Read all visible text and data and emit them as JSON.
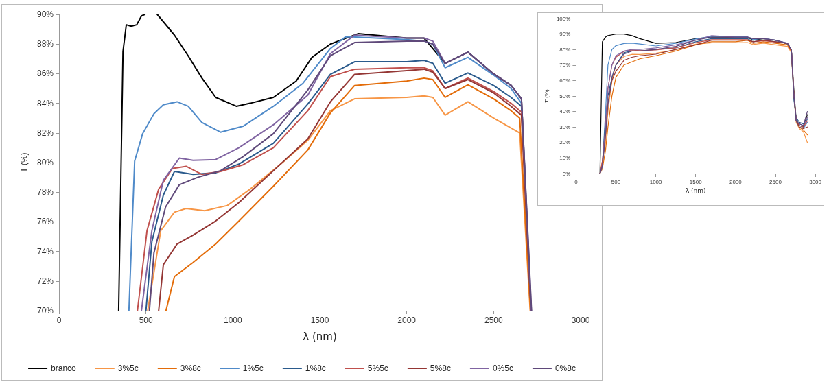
{
  "chart_data": [
    {
      "type": "line",
      "xlabel": "λ (nm)",
      "ylabel": "T (%)",
      "xlim": [
        0,
        3000
      ],
      "xticks": [
        0,
        500,
        1000,
        1500,
        2000,
        2500,
        3000
      ],
      "ylim": [
        70,
        90
      ],
      "yticks": [
        {
          "value": 70,
          "label": "70%"
        },
        {
          "value": 72,
          "label": "72%"
        },
        {
          "value": 74,
          "label": "74%"
        },
        {
          "value": 76,
          "label": "76%"
        },
        {
          "value": 78,
          "label": "78%"
        },
        {
          "value": 80,
          "label": "80%"
        },
        {
          "value": 82,
          "label": "82%"
        },
        {
          "value": 84,
          "label": "84%"
        },
        {
          "value": 86,
          "label": "86%"
        },
        {
          "value": 88,
          "label": "88%"
        },
        {
          "value": 90,
          "label": "90%"
        }
      ],
      "legend": "bottom",
      "marker": "none",
      "line_style": "solid",
      "series": [
        {
          "name": "branco",
          "color": "#000000",
          "x": [
            343,
            368,
            387,
            415,
            447,
            474,
            494,
            530,
            565,
            664,
            743,
            822,
            901,
            1020,
            1099,
            1233,
            1364,
            1455,
            1561,
            1720,
            2000,
            2100,
            2221,
            2352,
            2498,
            2601,
            2660,
            2715
          ],
          "values": [
            70,
            87.5,
            89.3,
            89.2,
            89.3,
            89.9,
            90,
            null,
            90,
            88.6,
            87.2,
            85.7,
            84.4,
            83.8,
            84.0,
            84.4,
            85.5,
            87.1,
            88.0,
            88.7,
            88.4,
            88.4,
            86.7,
            87.45,
            86.0,
            85.2,
            84.3,
            70
          ]
        },
        {
          "name": "3%5c",
          "color": "#f79646",
          "x": [
            510,
            585,
            664,
            731,
            838,
            968,
            1099,
            1296,
            1431,
            1561,
            1700,
            2000,
            2100,
            2150,
            2221,
            2352,
            2500,
            2650,
            2710
          ],
          "values": [
            70,
            75.4,
            76.65,
            76.9,
            76.75,
            77.1,
            78.2,
            80.1,
            81.5,
            83.5,
            84.3,
            84.4,
            84.5,
            84.4,
            83.2,
            84.1,
            83.0,
            82.0,
            70
          ]
        },
        {
          "name": "3%8c",
          "color": "#e36c09",
          "x": [
            615,
            664,
            771,
            901,
            1035,
            1233,
            1431,
            1561,
            1700,
            2000,
            2100,
            2150,
            2221,
            2352,
            2500,
            2600,
            2650,
            2712
          ],
          "values": [
            70,
            72.3,
            73.25,
            74.5,
            76.05,
            78.4,
            80.85,
            83.35,
            85.2,
            85.5,
            85.7,
            85.6,
            84.4,
            85.25,
            84.3,
            83.5,
            83,
            70
          ]
        },
        {
          "name": "1%5c",
          "color": "#4f8ac9",
          "x": [
            402,
            435,
            481,
            546,
            600,
            679,
            743,
            822,
            929,
            1059,
            1233,
            1403,
            1561,
            1650,
            2000,
            2100,
            2150,
            2221,
            2352,
            2500,
            2600,
            2660,
            2715
          ],
          "values": [
            70,
            80.1,
            81.95,
            83.3,
            83.9,
            84.1,
            83.8,
            82.7,
            82.05,
            82.45,
            83.8,
            85.35,
            87.7,
            88.5,
            88.3,
            88.2,
            88,
            86.4,
            87.1,
            85.9,
            85,
            84,
            70
          ]
        },
        {
          "name": "1%8c",
          "color": "#2a5a8c",
          "x": [
            500,
            534,
            600,
            664,
            771,
            901,
            1035,
            1233,
            1431,
            1561,
            1700,
            2000,
            2100,
            2150,
            2221,
            2352,
            2500,
            2600,
            2660,
            2715
          ],
          "values": [
            70,
            74.65,
            77.8,
            79.4,
            79.2,
            79.3,
            79.9,
            81.3,
            83.95,
            85.95,
            86.8,
            86.8,
            86.9,
            86.7,
            85.35,
            86.05,
            85.2,
            84.4,
            83.8,
            70
          ]
        },
        {
          "name": "5%5c",
          "color": "#c0504d",
          "x": [
            451,
            506,
            573,
            652,
            731,
            822,
            929,
            1059,
            1233,
            1431,
            1561,
            1700,
            2000,
            2100,
            2150,
            2221,
            2352,
            2500,
            2600,
            2660,
            2715
          ],
          "values": [
            70,
            75.4,
            78.2,
            79.6,
            79.75,
            79.2,
            79.4,
            79.85,
            81.0,
            83.5,
            85.8,
            86.3,
            86.4,
            86.4,
            86.2,
            85.0,
            85.7,
            84.8,
            84.0,
            83.4,
            70
          ]
        },
        {
          "name": "5%8c",
          "color": "#943634",
          "x": [
            573,
            600,
            679,
            771,
            901,
            1035,
            1233,
            1431,
            1561,
            1700,
            2000,
            2100,
            2150,
            2221,
            2352,
            2500,
            2600,
            2660,
            2715
          ],
          "values": [
            70,
            73.1,
            74.5,
            75.1,
            76.05,
            77.3,
            79.45,
            81.6,
            84.1,
            85.95,
            86.2,
            86.3,
            86.1,
            85.0,
            85.6,
            84.7,
            83.8,
            83.2,
            70
          ]
        },
        {
          "name": "0%5c",
          "color": "#8064a2",
          "x": [
            474,
            534,
            600,
            692,
            771,
            901,
            1035,
            1233,
            1431,
            1561,
            1700,
            2000,
            2100,
            2150,
            2221,
            2352,
            2498,
            2601,
            2660,
            2717
          ],
          "values": [
            70,
            75.4,
            78.8,
            80.3,
            80.15,
            80.2,
            81.0,
            82.55,
            84.55,
            87.35,
            88.6,
            88.4,
            88.4,
            88.2,
            86.7,
            87.45,
            86.0,
            85.2,
            84.3,
            70
          ]
        },
        {
          "name": "0%8c",
          "color": "#5f497a",
          "x": [
            520,
            546,
            613,
            692,
            797,
            929,
            1059,
            1233,
            1431,
            1561,
            1700,
            2000,
            2100,
            2150,
            2221,
            2352,
            2498,
            2601,
            2660,
            2718
          ],
          "values": [
            70,
            73.9,
            77.0,
            78.5,
            79.0,
            79.45,
            80.4,
            81.95,
            84.9,
            87.2,
            88.1,
            88.2,
            88.2,
            88.0,
            86.7,
            87.45,
            86.0,
            85.2,
            84.3,
            70
          ]
        }
      ]
    },
    {
      "type": "line",
      "xlabel": "λ (nm)",
      "ylabel": "T (%)",
      "xlim": [
        0,
        3000
      ],
      "xticks": [
        0,
        500,
        1000,
        1500,
        2000,
        2500,
        3000
      ],
      "ylim": [
        0,
        100
      ],
      "yticks": [
        {
          "value": 0,
          "label": "0%"
        },
        {
          "value": 10,
          "label": "10%"
        },
        {
          "value": 20,
          "label": "20%"
        },
        {
          "value": 30,
          "label": "30%"
        },
        {
          "value": 40,
          "label": "40%"
        },
        {
          "value": 50,
          "label": "50%"
        },
        {
          "value": 60,
          "label": "60%"
        },
        {
          "value": 70,
          "label": "70%"
        },
        {
          "value": 80,
          "label": "80%"
        },
        {
          "value": 90,
          "label": "90%"
        },
        {
          "value": 100,
          "label": "100%"
        }
      ],
      "marker": "none",
      "line_style": "solid",
      "x": [
        300,
        330,
        370,
        400,
        450,
        500,
        600,
        700,
        800,
        1000,
        1250,
        1500,
        1700,
        2000,
        2150,
        2220,
        2350,
        2500,
        2650,
        2700,
        2730,
        2760,
        2800,
        2850,
        2900
      ],
      "series": [
        {
          "color": "#000000",
          "values": [
            0,
            85,
            88,
            89,
            89.5,
            90,
            90,
            89,
            87,
            84,
            84.5,
            87,
            88,
            88,
            88,
            86,
            87,
            86,
            83.5,
            80,
            55,
            35,
            31,
            30,
            38
          ]
        },
        {
          "color": "#f79646",
          "values": [
            0,
            8,
            20,
            40,
            60,
            70,
            75.5,
            76.9,
            76.8,
            77.6,
            79.8,
            83.5,
            84.3,
            84.4,
            84.5,
            83.2,
            84.1,
            83,
            82,
            78,
            50,
            33,
            29,
            27,
            20
          ]
        },
        {
          "color": "#e36c09",
          "values": [
            0,
            3,
            15,
            30,
            50,
            62,
            70,
            72,
            74,
            76,
            79,
            83,
            85,
            85,
            86,
            84,
            85,
            84,
            83,
            79,
            52,
            34,
            30,
            28,
            25
          ]
        },
        {
          "color": "#4f8ac9",
          "values": [
            0,
            5,
            40,
            70,
            80,
            82.5,
            83.9,
            84.1,
            83.6,
            82.3,
            84,
            86.8,
            88.5,
            88.3,
            88.2,
            86.4,
            87.1,
            86,
            84,
            80,
            50,
            34,
            30,
            29,
            33
          ]
        },
        {
          "color": "#2a5a8c",
          "values": [
            0,
            6,
            35,
            50,
            62,
            70,
            78,
            79,
            79,
            80,
            81,
            85,
            87,
            87,
            87,
            85,
            86,
            85,
            84,
            80,
            48,
            36,
            33,
            32,
            35
          ]
        },
        {
          "color": "#c0504d",
          "values": [
            0,
            8,
            30,
            55,
            70,
            75,
            78.8,
            79.7,
            79.3,
            79.7,
            81.1,
            84.4,
            86.3,
            86.4,
            86.4,
            85,
            85.7,
            84.8,
            84,
            80,
            52,
            34,
            31,
            30,
            34
          ]
        },
        {
          "color": "#943634",
          "values": [
            0,
            5,
            25,
            45,
            60,
            66,
            73,
            75,
            76,
            77,
            80,
            83,
            86,
            86,
            86,
            85,
            86,
            85,
            84,
            79,
            52,
            34,
            30,
            29,
            30
          ]
        },
        {
          "color": "#8064a2",
          "values": [
            0,
            5,
            30,
            55,
            70,
            76,
            79,
            80,
            80,
            81,
            83,
            86,
            89,
            88,
            88,
            87,
            87,
            86,
            84,
            80,
            52,
            34,
            32,
            31,
            36
          ]
        },
        {
          "color": "#5f497a",
          "values": [
            0,
            5,
            25,
            45,
            62,
            70,
            77,
            79,
            79,
            80,
            82,
            86,
            88,
            88,
            88,
            87,
            87,
            86,
            84,
            80,
            52,
            34,
            32,
            31,
            40
          ]
        }
      ]
    }
  ]
}
